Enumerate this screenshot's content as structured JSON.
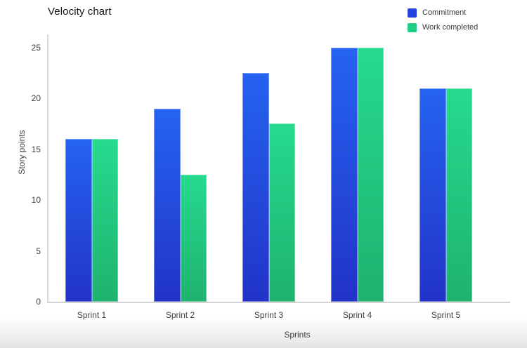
{
  "chart_data": {
    "type": "bar",
    "title": "Velocity chart",
    "categories": [
      "Sprint 1",
      "Sprint 2",
      "Sprint 3",
      "Sprint 4",
      "Sprint 5"
    ],
    "series": [
      {
        "name": "Commitment",
        "values": [
          16,
          19,
          22.5,
          25,
          21
        ],
        "legend_color": "#2443de",
        "bar_gradient_top": "#2563f0",
        "bar_gradient_bottom": "#2233c9"
      },
      {
        "name": "Work completed",
        "values": [
          16,
          12.5,
          17.5,
          25,
          21
        ],
        "legend_color": "#21cc84",
        "bar_gradient_top": "#26da8d",
        "bar_gradient_bottom": "#1fb26f"
      }
    ],
    "xlabel": "Sprints",
    "ylabel": "Story points",
    "ylim": [
      0,
      25
    ],
    "yticks": [
      0,
      5,
      10,
      15,
      20,
      25
    ],
    "grid": false,
    "legend_position": "top-right",
    "axis_color": "#d6d6d6",
    "text_color": "#3c3f43",
    "title_color": "#161616",
    "background": "#ffffff"
  }
}
